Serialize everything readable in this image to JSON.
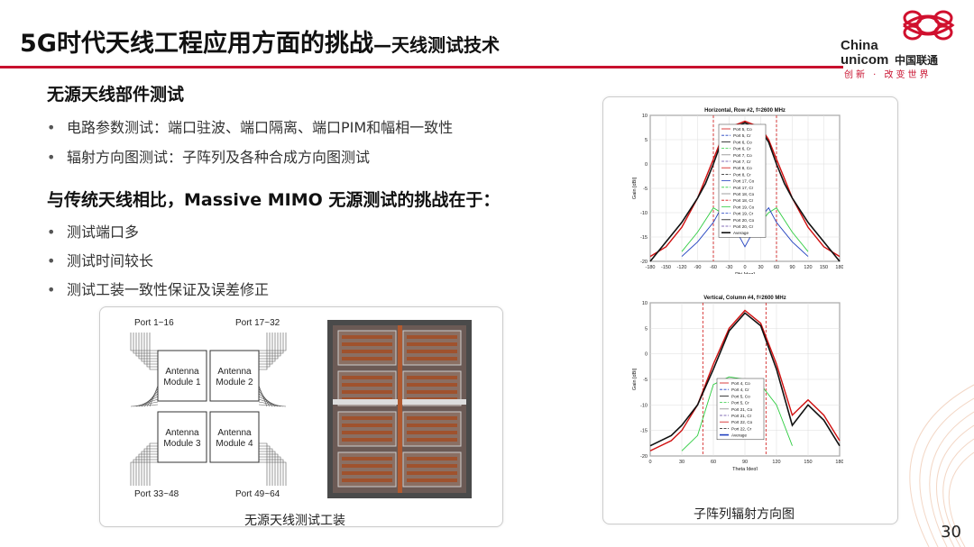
{
  "header": {
    "title_main": "5G时代天线工程应用方面的挑战",
    "title_sub": "—天线测试技术",
    "logo": {
      "line1": "China",
      "line2": "unicom",
      "cn": "中国联通",
      "slogan": "创新 · 改变世界"
    }
  },
  "section1": {
    "heading": "无源天线部件测试",
    "bullets": [
      "电路参数测试：端口驻波、端口隔离、端口PIM和幅相一致性",
      "辐射方向图测试：子阵列及各种合成方向图测试"
    ]
  },
  "section2": {
    "heading": "与传统天线相比，Massive MIMO 无源测试的挑战在于：",
    "bullets": [
      "测试端口多",
      "测试时间较长",
      "测试工装一致性保证及误差修正"
    ]
  },
  "fixture_panel": {
    "caption": "无源天线测试工装",
    "port_labels": [
      "Port 1~16",
      "Port 17~32",
      "Port 33~48",
      "Port 49~64"
    ],
    "module_labels": [
      "Antenna\nModule 1",
      "Antenna\nModule 2",
      "Antenna\nModule 3",
      "Antenna\nModule 4"
    ]
  },
  "pattern_panel": {
    "caption": "子阵列辐射方向图"
  },
  "chart_data": [
    {
      "type": "line",
      "title": "Horizontal, Row #2, f=2600 MHz",
      "xlabel": "Phi [deg]",
      "ylabel": "Gain [dBi]",
      "xlim": [
        -180,
        180
      ],
      "ylim": [
        -20,
        10
      ],
      "xticks": [
        -180,
        -150,
        -120,
        -90,
        -60,
        -30,
        0,
        30,
        60,
        90,
        120,
        150,
        180
      ],
      "yticks": [
        10,
        5,
        0,
        -5,
        -10,
        -15,
        -20
      ],
      "grid": true,
      "legend_position": "center",
      "legend": [
        "Port 5, Co",
        "Port 5, Cr",
        "Port 6, Co",
        "Port 6, Cr",
        "Port 7, Co",
        "Port 7, Cr",
        "Port 8, Co",
        "Port 8, Cr",
        "Port 17, Co",
        "Port 17, Cr",
        "Port 18, Co",
        "Port 18, Cr",
        "Port 19, Co",
        "Port 19, Cr",
        "Port 20, Co",
        "Port 20, Cr",
        "Average"
      ],
      "series": [
        {
          "name": "Port 5, Co",
          "color": "#d01010",
          "x": [
            -180,
            -150,
            -120,
            -90,
            -75,
            -60,
            -45,
            -30,
            0,
            30,
            45,
            60,
            75,
            90,
            120,
            150,
            180
          ],
          "y": [
            -19,
            -17,
            -13,
            -7,
            -3,
            1,
            5,
            7.5,
            8.8,
            7.5,
            5,
            1,
            -3,
            -7,
            -13,
            -17,
            -19
          ]
        },
        {
          "name": "Average",
          "color": "#111111",
          "x": [
            -180,
            -150,
            -120,
            -90,
            -75,
            -60,
            -45,
            -30,
            0,
            30,
            45,
            60,
            75,
            90,
            120,
            150,
            180
          ],
          "y": [
            -20,
            -16,
            -12,
            -7,
            -4,
            0,
            4.5,
            7,
            8.5,
            7,
            4.5,
            0,
            -4,
            -7,
            -12,
            -16,
            -20
          ]
        },
        {
          "name": "Port 18, Cr",
          "color": "#2ecc40",
          "x": [
            -120,
            -90,
            -60,
            -45,
            -30,
            0,
            30,
            45,
            60,
            90,
            120
          ],
          "y": [
            -18,
            -14,
            -9,
            -10,
            -12,
            -15,
            -12,
            -10,
            -9,
            -14,
            -18
          ]
        },
        {
          "name": "Port 6, Cr",
          "color": "#1f3fbf",
          "x": [
            -120,
            -90,
            -60,
            -45,
            -30,
            0,
            30,
            45,
            60,
            90,
            120
          ],
          "y": [
            -19,
            -16,
            -12,
            -9,
            -11,
            -17,
            -11,
            -9,
            -12,
            -16,
            -19
          ]
        }
      ],
      "annotations": [
        "vertical dashed lines at -60 and 60"
      ]
    },
    {
      "type": "line",
      "title": "Vertical, Column #4, f=2600 MHz",
      "xlabel": "Theta [deg]",
      "ylabel": "Gain [dBi]",
      "xlim": [
        0,
        180
      ],
      "ylim": [
        -20,
        10
      ],
      "xticks": [
        0,
        30,
        60,
        90,
        120,
        150,
        180
      ],
      "yticks": [
        10,
        5,
        0,
        -5,
        -10,
        -15,
        -20
      ],
      "grid": true,
      "legend_position": "bottom-left",
      "legend": [
        "Port 4, Co",
        "Port 4, Cr",
        "Port 5, Co",
        "Port 5, Cr",
        "Port 21, Co",
        "Port 21, Cr",
        "Port 22, Co",
        "Port 22, Cr",
        "Average"
      ],
      "series": [
        {
          "name": "Port 4, Co",
          "color": "#d01010",
          "x": [
            0,
            20,
            30,
            45,
            60,
            75,
            90,
            105,
            120,
            135,
            150,
            165,
            180
          ],
          "y": [
            -19,
            -17,
            -15,
            -10,
            -2,
            5,
            8.5,
            6,
            -2,
            -12,
            -9,
            -12,
            -17
          ]
        },
        {
          "name": "Average",
          "color": "#111111",
          "x": [
            0,
            20,
            30,
            45,
            60,
            75,
            90,
            105,
            120,
            135,
            150,
            165,
            180
          ],
          "y": [
            -18,
            -16,
            -14,
            -10,
            -3,
            4.5,
            8,
            5.5,
            -3,
            -14,
            -10,
            -13,
            -18
          ]
        },
        {
          "name": "Port 4, Cr",
          "color": "#2ecc40",
          "x": [
            30,
            45,
            60,
            75,
            90,
            105,
            120,
            135
          ],
          "y": [
            -19,
            -16,
            -6,
            -4.5,
            -5,
            -6,
            -10,
            -18
          ]
        }
      ],
      "annotations": [
        "vertical dashed lines at 50 and 110"
      ]
    }
  ]
}
